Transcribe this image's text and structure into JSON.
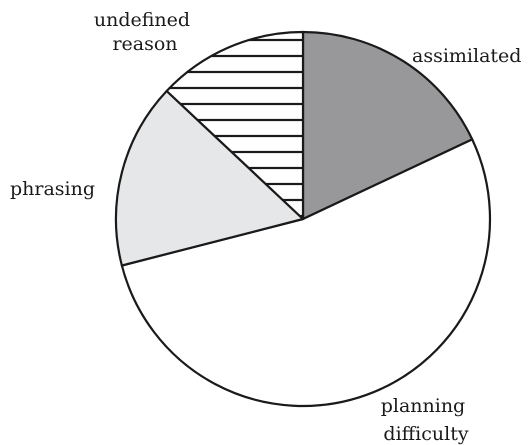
{
  "chart_data": {
    "type": "pie",
    "title": "",
    "start_angle_deg": 0,
    "direction": "clockwise",
    "slices": [
      {
        "label": "assimilated",
        "value": 18,
        "fill": "#98989a",
        "pattern": "none"
      },
      {
        "label": "planning difficulty",
        "value": 53,
        "fill": "#ffffff",
        "pattern": "none"
      },
      {
        "label": "phrasing",
        "value": 16,
        "fill": "#e6e7e8",
        "pattern": "none"
      },
      {
        "label": "undefined reason",
        "value": 13,
        "fill": "#ffffff",
        "pattern": "horizontal-lines"
      }
    ],
    "labels": [
      {
        "line1": "assimilated",
        "line2": ""
      },
      {
        "line1": "planning",
        "line2": "difficulty"
      },
      {
        "line1": "phrasing",
        "line2": ""
      },
      {
        "line1": "undefined",
        "line2": "reason"
      }
    ]
  }
}
